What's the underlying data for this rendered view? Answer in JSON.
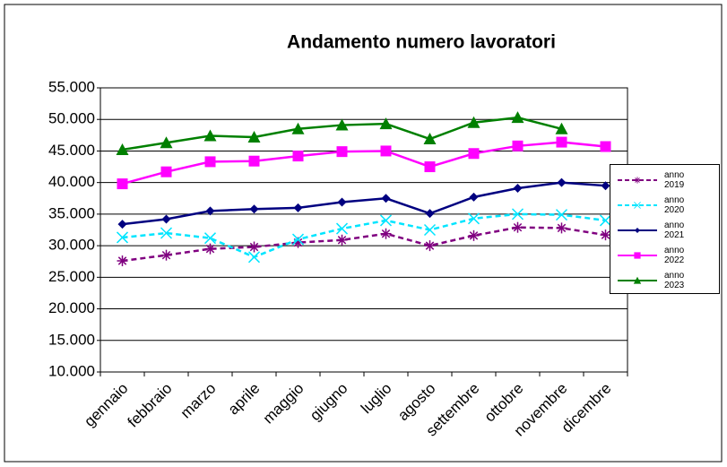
{
  "chart_data": {
    "type": "line",
    "title": "Andamento numero lavoratori",
    "categories": [
      "gennaio",
      "febbraio",
      "marzo",
      "aprile",
      "maggio",
      "giugno",
      "luglio",
      "agosto",
      "settembre",
      "ottobre",
      "novembre",
      "dicembre"
    ],
    "series": [
      {
        "name": "anno 2019",
        "color": "#800080",
        "dashed": true,
        "marker": "asterisk",
        "values": [
          27600,
          28500,
          29500,
          29800,
          30500,
          30900,
          31900,
          30000,
          31600,
          32900,
          32800,
          31700
        ]
      },
      {
        "name": "anno 2020",
        "color": "#00e5ff",
        "dashed": true,
        "marker": "cross",
        "values": [
          31300,
          32000,
          31200,
          28200,
          31000,
          32700,
          34000,
          32500,
          34300,
          35000,
          34900,
          34000
        ]
      },
      {
        "name": "anno 2021",
        "color": "#000080",
        "dashed": false,
        "marker": "diamond",
        "values": [
          33400,
          34200,
          35500,
          35800,
          36000,
          36900,
          37500,
          35100,
          37700,
          39100,
          40000,
          39500
        ]
      },
      {
        "name": "anno 2022",
        "color": "#ff00ff",
        "dashed": false,
        "marker": "square",
        "values": [
          39800,
          41700,
          43300,
          43400,
          44200,
          44900,
          45000,
          42500,
          44600,
          45800,
          46400,
          45700
        ]
      },
      {
        "name": "anno 2023",
        "color": "#008000",
        "dashed": false,
        "marker": "triangle",
        "values": [
          45200,
          46300,
          47400,
          47200,
          48500,
          49100,
          49300,
          46900,
          49500,
          50300,
          48500,
          null
        ]
      }
    ],
    "ylim": [
      10000,
      55000
    ],
    "yticks": [
      {
        "value": 10000,
        "label": "10.000"
      },
      {
        "value": 15000,
        "label": "15.000"
      },
      {
        "value": 20000,
        "label": "20.000"
      },
      {
        "value": 25000,
        "label": "25.000"
      },
      {
        "value": 30000,
        "label": "30.000"
      },
      {
        "value": 35000,
        "label": "35.000"
      },
      {
        "value": 40000,
        "label": "40.000"
      },
      {
        "value": 45000,
        "label": "45.000"
      },
      {
        "value": 50000,
        "label": "50.000"
      },
      {
        "value": 55000,
        "label": "55.000"
      }
    ],
    "grid": true,
    "legend": "right"
  }
}
